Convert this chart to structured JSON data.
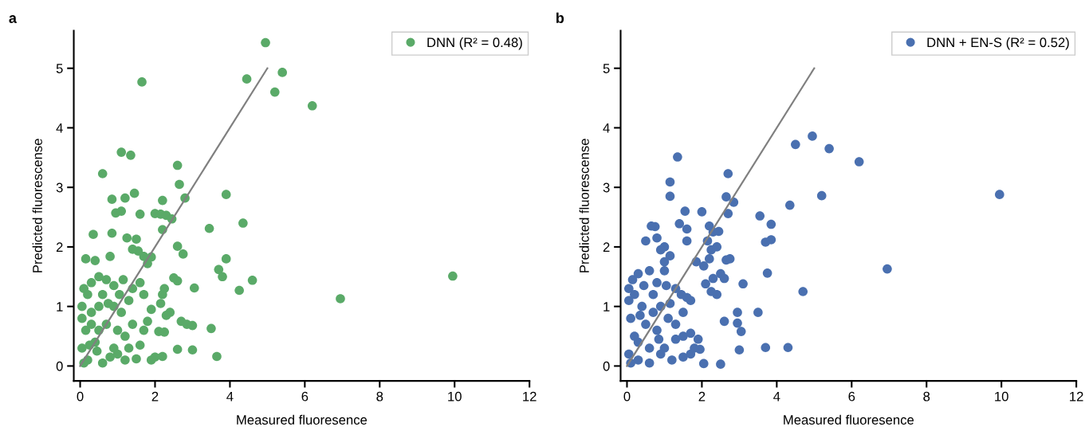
{
  "chart_data": [
    {
      "type": "scatter",
      "title": "a",
      "xlabel": "Measured fluoresence",
      "ylabel": "Predicted fluorescense",
      "xlim": [
        -0.17,
        12
      ],
      "ylim": [
        -0.25,
        5.63
      ],
      "xticks": [
        0,
        2,
        4,
        6,
        8,
        10,
        12
      ],
      "yticks": [
        0,
        1,
        2,
        3,
        4,
        5
      ],
      "grid": false,
      "legend": "top right",
      "series": [
        {
          "name": "DNN (R² = 0.48)",
          "color": "#5aaa68",
          "marker": "circle",
          "x": [
            4.95,
            4.45,
            5.4,
            5.2,
            6.2,
            1.65,
            1.1,
            1.35,
            0.6,
            2.6,
            2.65,
            1.2,
            2.2,
            2.8,
            3.9,
            1.45,
            0.85,
            0.95,
            1.1,
            1.6,
            2.0,
            2.15,
            2.3,
            2.45,
            2.2,
            3.45,
            4.35,
            1.25,
            0.35,
            0.85,
            1.5,
            1.55,
            1.4,
            2.6,
            2.75,
            0.4,
            0.15,
            0.8,
            1.8,
            1.7,
            1.9,
            3.7,
            3.9,
            3.8,
            4.6,
            2.5,
            2.6,
            3.05,
            4.25,
            9.95,
            6.95,
            2.25,
            2.2,
            2.15,
            2.7,
            2.85,
            3.0,
            3.5,
            2.25,
            2.1,
            1.8,
            2.6,
            3.0,
            3.65,
            2.0,
            2.2,
            1.6,
            1.9,
            1.5,
            1.3,
            1.0,
            0.5,
            0.3,
            0.1,
            0.05,
            0.2,
            0.6,
            0.9,
            1.15,
            0.7,
            0.5,
            1.4,
            1.6,
            1.7,
            0.3,
            0.15,
            0.05,
            0.2,
            0.4,
            0.7,
            0.9,
            1.1,
            1.2,
            0.6,
            0.1,
            0.3,
            0.8,
            1.4,
            1.2,
            0.05,
            0.25,
            0.5,
            0.75,
            0.45,
            1.0,
            0.9,
            1.7,
            1.05,
            2.4,
            2.3,
            1.9,
            1.3
          ],
          "values": [
            5.43,
            4.82,
            4.93,
            4.6,
            4.37,
            4.77,
            3.59,
            3.54,
            3.23,
            3.37,
            3.05,
            2.82,
            2.78,
            2.82,
            2.88,
            2.9,
            2.8,
            2.57,
            2.6,
            2.55,
            2.56,
            2.55,
            2.53,
            2.47,
            2.29,
            2.31,
            2.4,
            2.15,
            2.21,
            2.23,
            2.13,
            1.93,
            1.96,
            2.01,
            1.88,
            1.77,
            1.8,
            1.84,
            1.72,
            1.84,
            1.83,
            1.62,
            1.8,
            1.5,
            1.44,
            1.48,
            1.43,
            1.31,
            1.27,
            1.51,
            1.13,
            1.3,
            1.2,
            1.05,
            0.75,
            0.7,
            0.68,
            0.63,
            0.57,
            0.58,
            0.75,
            0.28,
            0.27,
            0.16,
            0.15,
            0.16,
            0.35,
            0.1,
            0.12,
            0.3,
            0.6,
            1.0,
            1.4,
            1.3,
            1.0,
            1.2,
            1.2,
            1.35,
            1.45,
            1.45,
            1.5,
            1.3,
            1.4,
            1.2,
            0.9,
            0.6,
            0.3,
            0.1,
            0.4,
            0.7,
            0.3,
            0.9,
            0.1,
            0.05,
            0.05,
            0.7,
            0.15,
            0.7,
            0.5,
            0.8,
            0.35,
            0.6,
            1.05,
            0.25,
            0.2,
            1.0,
            0.6,
            1.2,
            0.9,
            0.85,
            0.95,
            1.1
          ]
        },
        {
          "type": "line",
          "color": "#808080",
          "x": [
            0,
            5
          ],
          "values": [
            0,
            5
          ]
        }
      ]
    },
    {
      "type": "scatter",
      "title": "b",
      "xlabel": "Measured fluoresence",
      "ylabel": "Predicted fluorescense",
      "xlim": [
        -0.17,
        12
      ],
      "ylim": [
        -0.25,
        5.63
      ],
      "xticks": [
        0,
        2,
        4,
        6,
        8,
        10,
        12
      ],
      "yticks": [
        0,
        1,
        2,
        3,
        4,
        5
      ],
      "grid": false,
      "legend": "top right",
      "series": [
        {
          "name": "DNN + EN-S (R² = 0.52)",
          "color": "#4a70b0",
          "marker": "circle",
          "x": [
            1.35,
            1.15,
            1.15,
            2.7,
            2.65,
            4.5,
            4.95,
            5.4,
            6.2,
            5.2,
            9.95,
            6.95,
            4.35,
            3.55,
            3.85,
            3.7,
            3.85,
            2.85,
            2.7,
            1.55,
            2.0,
            1.6,
            1.4,
            0.75,
            0.65,
            0.5,
            0.8,
            1.0,
            1.15,
            1.0,
            0.9,
            1.6,
            2.2,
            2.3,
            2.45,
            2.15,
            2.25,
            2.4,
            1.85,
            2.05,
            2.2,
            2.5,
            2.75,
            2.65,
            3.75,
            3.1,
            2.1,
            2.3,
            2.6,
            2.25,
            2.4,
            3.5,
            4.7,
            2.95,
            2.95,
            3.05,
            2.6,
            3.0,
            3.7,
            4.3,
            2.05,
            2.5,
            1.95,
            1.7,
            1.9,
            1.5,
            0.15,
            0.05,
            0.3,
            0.6,
            0.45,
            0.8,
            1.05,
            1.3,
            1.45,
            1.6,
            1.7,
            1.5,
            1.3,
            1.1,
            0.9,
            0.7,
            0.4,
            0.1,
            0.2,
            0.05,
            0.3,
            0.6,
            0.8,
            1.0,
            1.2,
            1.5,
            1.7,
            0.5,
            0.3,
            0.9,
            0.1,
            0.6,
            1.3,
            0.05,
            0.2,
            0.7,
            1.0,
            0.35,
            1.8,
            0.85,
            1.15
          ],
          "values": [
            3.51,
            3.09,
            2.85,
            3.23,
            2.84,
            3.72,
            3.86,
            3.65,
            3.43,
            2.86,
            2.88,
            1.63,
            2.7,
            2.52,
            2.38,
            2.08,
            2.12,
            2.75,
            2.56,
            2.6,
            2.59,
            2.3,
            2.39,
            2.34,
            2.35,
            2.1,
            2.15,
            2.0,
            1.85,
            1.75,
            1.95,
            2.1,
            2.35,
            2.25,
            2.26,
            2.1,
            1.95,
            2.0,
            1.75,
            1.68,
            1.8,
            1.55,
            1.8,
            1.78,
            1.56,
            1.38,
            1.38,
            1.47,
            1.47,
            1.25,
            1.2,
            0.9,
            1.25,
            0.9,
            0.72,
            0.58,
            0.75,
            0.27,
            0.31,
            0.31,
            0.04,
            0.03,
            0.28,
            0.55,
            0.45,
            0.5,
            1.45,
            1.3,
            1.55,
            1.6,
            1.35,
            1.4,
            1.35,
            1.3,
            1.2,
            1.15,
            1.1,
            0.9,
            0.7,
            0.8,
            1.0,
            0.9,
            1.0,
            0.8,
            0.5,
            0.2,
            0.1,
            0.3,
            0.6,
            0.3,
            0.1,
            0.15,
            0.2,
            0.7,
            0.4,
            0.2,
            0.05,
            0.05,
            0.45,
            1.1,
            1.2,
            1.2,
            1.6,
            0.85,
            0.3,
            0.45,
            1.05
          ]
        },
        {
          "type": "line",
          "color": "#808080",
          "x": [
            0,
            5
          ],
          "values": [
            0,
            5
          ]
        }
      ]
    }
  ]
}
